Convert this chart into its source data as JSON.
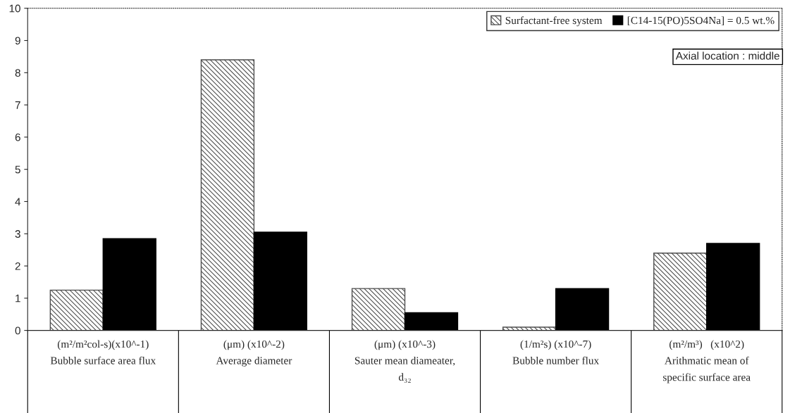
{
  "chart_data": {
    "type": "bar",
    "categories": [
      "(m²/m²col-s)(x10^-1)\nBubble surface area flux",
      "(μm) (x10^-2)\nAverage diameter",
      "(μm) (x10^-3)\nSauter mean diameater,\nd₃₂",
      "(1/m²s) (x10^-7)\nBubble number flux",
      "(m²/m³)   (x10^2)\nArithmatic mean of\nspecific surface area"
    ],
    "series": [
      {
        "name": "Surfactant-free system",
        "color": "#4d4d4d",
        "values": [
          1.25,
          8.4,
          1.3,
          0.1,
          2.4
        ]
      },
      {
        "name": "[C14-15(PO)5SO4Na] = 0.5 wt.%",
        "color": "#000000",
        "values": [
          2.85,
          3.05,
          0.55,
          1.3,
          2.7
        ]
      }
    ],
    "ylim": [
      0,
      10
    ],
    "yticks": [
      0,
      1,
      2,
      3,
      4,
      5,
      6,
      7,
      8,
      9,
      10
    ],
    "annotations": [
      "Axial location : middle"
    ],
    "legend": "top right",
    "grid": false
  }
}
